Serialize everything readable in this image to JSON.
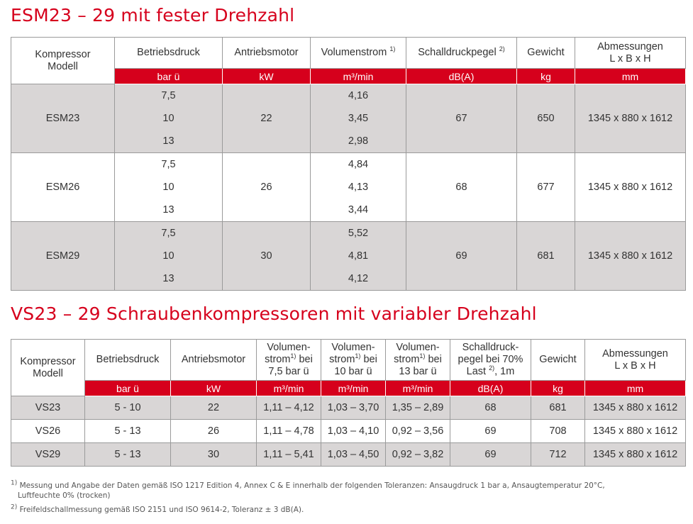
{
  "title1": "ESM23 – 29 mit fester Drehzahl",
  "title2": "VS23 – 29 Schraubenkompressoren mit variabler Drehzahl",
  "table1": {
    "headers": {
      "model": [
        "Kompressor",
        "Modell"
      ],
      "pressure": "Betriebsdruck",
      "motor": "Antriebsmotor",
      "flow": "Volumenstrom",
      "flow_sup": "1)",
      "sound": "Schalldruckpegel",
      "sound_sup": "2)",
      "weight": "Gewicht",
      "dims": [
        "Abmessungen",
        "L x B x H"
      ]
    },
    "units": [
      "",
      "bar ü",
      "kW",
      "m³/min",
      "dB(A)",
      "kg",
      "mm"
    ],
    "rows": [
      {
        "model": "ESM23",
        "pressures": [
          "7,5",
          "10",
          "13"
        ],
        "motor": "22",
        "flows": [
          "4,16",
          "3,45",
          "2,98"
        ],
        "sound": "67",
        "weight": "650",
        "dims": "1345 x 880 x 1612"
      },
      {
        "model": "ESM26",
        "pressures": [
          "7,5",
          "10",
          "13"
        ],
        "motor": "26",
        "flows": [
          "4,84",
          "4,13",
          "3,44"
        ],
        "sound": "68",
        "weight": "677",
        "dims": "1345 x 880 x 1612"
      },
      {
        "model": "ESM29",
        "pressures": [
          "7,5",
          "10",
          "13"
        ],
        "motor": "30",
        "flows": [
          "5,52",
          "4,81",
          "4,12"
        ],
        "sound": "69",
        "weight": "681",
        "dims": "1345 x 880 x 1612"
      }
    ]
  },
  "table2": {
    "headers": {
      "model": [
        "Kompressor",
        "Modell"
      ],
      "pressure": "Betriebsdruck",
      "motor": "Antriebsmotor",
      "flow75": [
        "Volumen-",
        "strom",
        "1)",
        " bei",
        "7,5 bar ü"
      ],
      "flow10": [
        "Volumen-",
        "strom",
        "1)",
        " bei",
        "10 bar ü"
      ],
      "flow13": [
        "Volumen-",
        "strom",
        "1)",
        " bei",
        "13 bar ü"
      ],
      "sound": [
        "Schalldruck-",
        "pegel bei 70%",
        "Last ",
        "2)",
        ", 1m"
      ],
      "weight": "Gewicht",
      "dims": [
        "Abmessungen",
        "L x B x H"
      ]
    },
    "units": [
      "",
      "bar ü",
      "kW",
      "m³/min",
      "m³/min",
      "m³/min",
      "dB(A)",
      "kg",
      "mm"
    ],
    "rows": [
      {
        "model": "VS23",
        "pressure": "5 - 10",
        "motor": "22",
        "f75": "1,11 – 4,12",
        "f10": "1,03 – 3,70",
        "f13": "1,35 – 2,89",
        "sound": "68",
        "weight": "681",
        "dims": "1345 x 880 x 1612"
      },
      {
        "model": "VS26",
        "pressure": "5 - 13",
        "motor": "26",
        "f75": "1,11 – 4,78",
        "f10": "1,03 – 4,10",
        "f13": "0,92 – 3,56",
        "sound": "69",
        "weight": "708",
        "dims": "1345 x 880 x 1612"
      },
      {
        "model": "VS29",
        "pressure": "5 - 13",
        "motor": "30",
        "f75": "1,11 – 5,41",
        "f10": "1,03 – 4,50",
        "f13": "0,92 – 3,82",
        "sound": "69",
        "weight": "712",
        "dims": "1345 x 880 x 1612"
      }
    ]
  },
  "footnotes": {
    "fn1_mark": "1)",
    "fn1_line1": "Messung und Angabe der Daten gemäß ISO 1217 Edition 4, Annex C & E innerhalb der folgenden Toleranzen: Ansaugdruck 1 bar a, Ansaugtemperatur 20°C,",
    "fn1_line2": "Luftfeuchte 0% (trocken)",
    "fn2_mark": "2)",
    "fn2_line1": "Freifeldschallmessung gemäß ISO 2151 und ISO 9614-2, Toleranz ± 3 dB(A)."
  }
}
